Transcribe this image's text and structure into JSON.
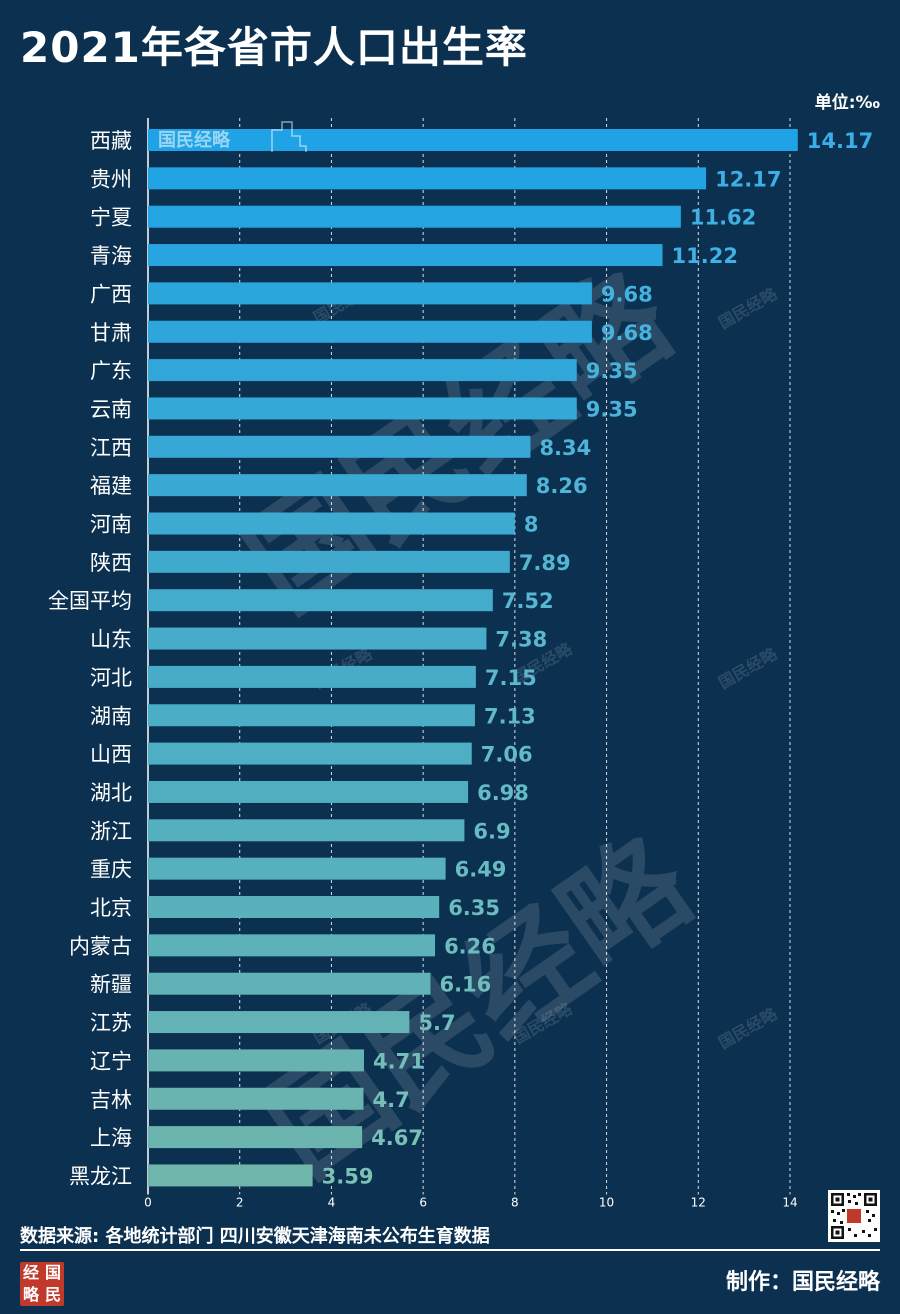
{
  "title": "2021年各省市人口出生率",
  "unit_label": "单位:‰",
  "source_label": "数据来源: 各地统计部门 四川安徽天津海南未公布生育数据",
  "credit_label": "制作：国民经略",
  "logo": {
    "text": [
      "经",
      "国",
      "略",
      "民"
    ]
  },
  "watermark": {
    "text": "国民经略"
  },
  "colors": {
    "background": "#0b3050",
    "bar_top": "#1fa3e6",
    "bar_bottom": "#6fb5ac",
    "label_top": "#3aaee8",
    "label_bottom": "#7cc1b4",
    "grid": "#ffffff"
  },
  "chart_data": {
    "type": "bar",
    "orientation": "horizontal",
    "categories": [
      "西藏",
      "贵州",
      "宁夏",
      "青海",
      "广西",
      "甘肃",
      "广东",
      "云南",
      "江西",
      "福建",
      "河南",
      "陕西",
      "全国平均",
      "山东",
      "河北",
      "湖南",
      "山西",
      "湖北",
      "浙江",
      "重庆",
      "北京",
      "内蒙古",
      "新疆",
      "江苏",
      "辽宁",
      "吉林",
      "上海",
      "黑龙江"
    ],
    "values": [
      14.17,
      12.17,
      11.62,
      11.22,
      9.68,
      9.68,
      9.35,
      9.35,
      8.34,
      8.26,
      8,
      7.89,
      7.52,
      7.38,
      7.15,
      7.13,
      7.06,
      6.98,
      6.9,
      6.49,
      6.35,
      6.26,
      6.16,
      5.7,
      4.71,
      4.7,
      4.67,
      3.59
    ],
    "value_labels": [
      "14.17",
      "12.17",
      "11.62",
      "11.22",
      "9.68",
      "9.68",
      "9.35",
      "9.35",
      "8.34",
      "8.26",
      "8",
      "7.89",
      "7.52",
      "7.38",
      "7.15",
      "7.13",
      "7.06",
      "6.98",
      "6.9",
      "6.49",
      "6.35",
      "6.26",
      "6.16",
      "5.7",
      "4.71",
      "4.7",
      "4.67",
      "3.59"
    ],
    "xlim": [
      0,
      14
    ],
    "xticks": [
      0,
      2,
      4,
      6,
      8,
      10,
      12,
      14
    ],
    "grid": "vertical dashed",
    "legend": "none",
    "sorted": "descending"
  }
}
